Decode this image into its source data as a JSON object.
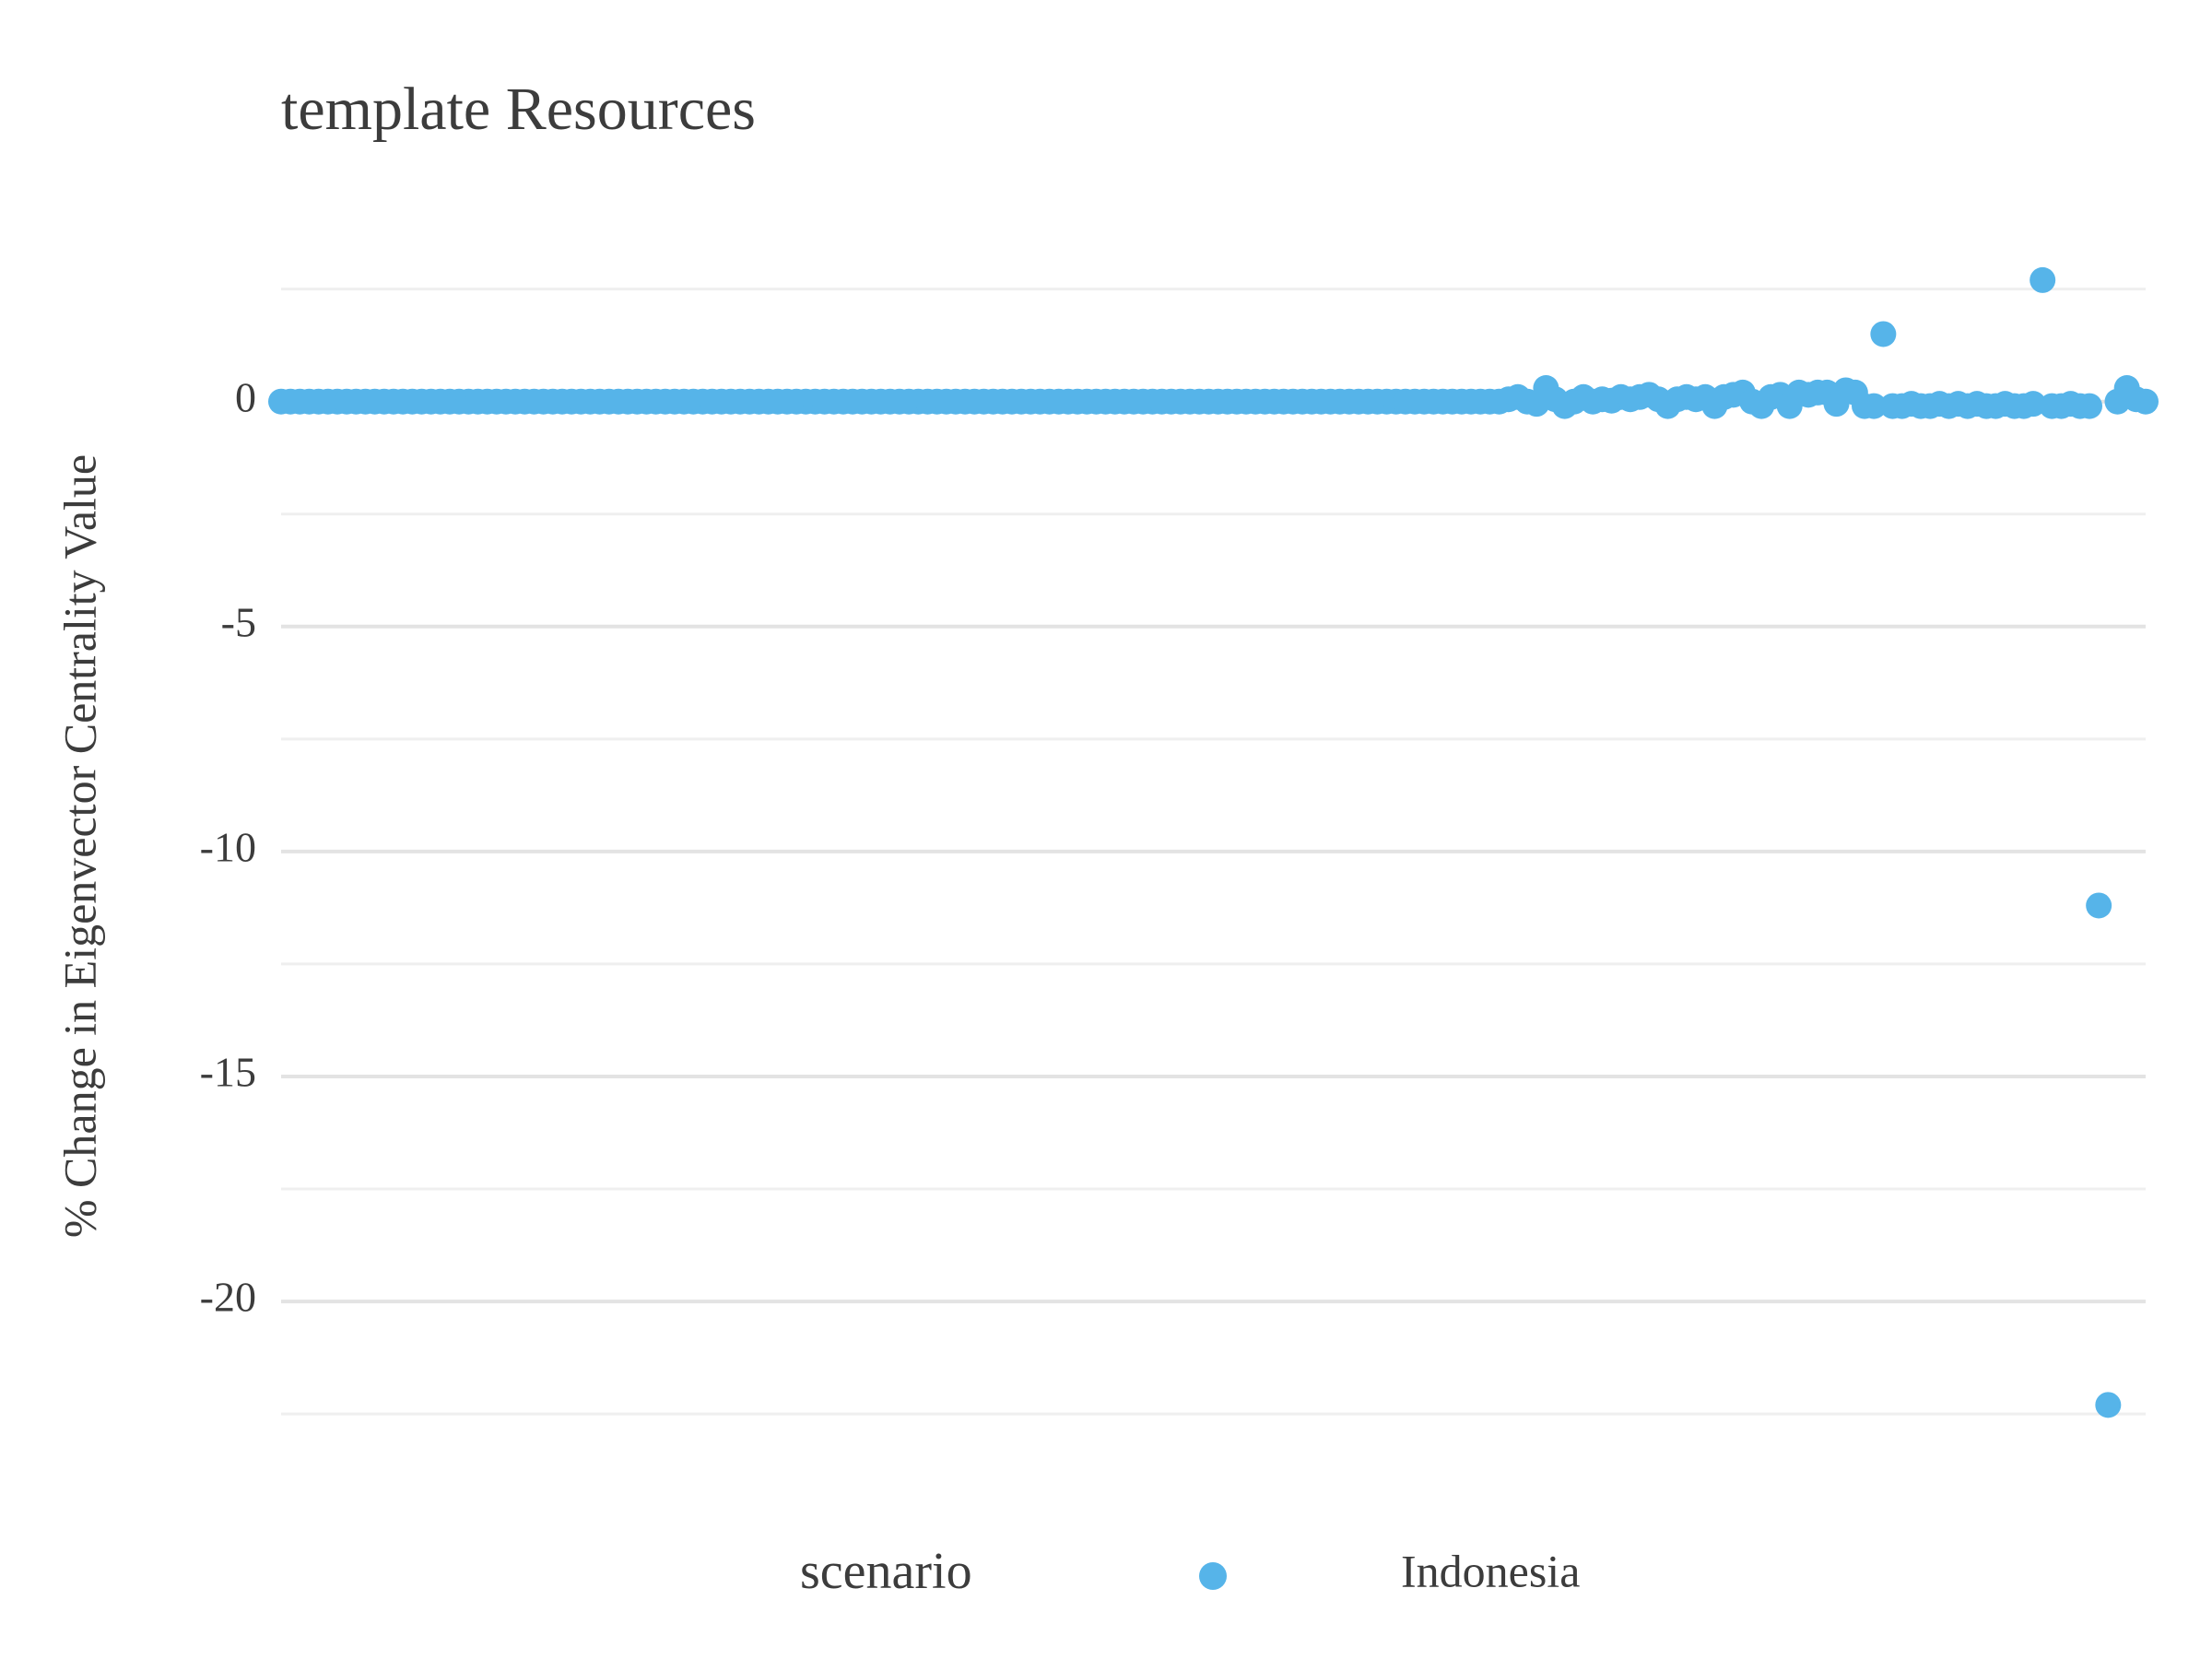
{
  "chart_data": {
    "type": "scatter",
    "title": "template Resources",
    "y_label": "% Change in Eigenvector Centrality Value",
    "legend_title": "scenario",
    "series": [
      {
        "name": "Indonesia",
        "color": "#56B4E9",
        "values": [
          0,
          0,
          0,
          0,
          0,
          0,
          0,
          0,
          0,
          0,
          0,
          0,
          0,
          0,
          0,
          0,
          0,
          0,
          0,
          0,
          0,
          0,
          0,
          0,
          0,
          0,
          0,
          0,
          0,
          0,
          0,
          0,
          0,
          0,
          0,
          0,
          0,
          0,
          0,
          0,
          0,
          0,
          0,
          0,
          0,
          0,
          0,
          0,
          0,
          0,
          0,
          0,
          0,
          0,
          0,
          0,
          0,
          0,
          0,
          0,
          0,
          0,
          0,
          0,
          0,
          0,
          0,
          0,
          0,
          0,
          0,
          0,
          0,
          0,
          0,
          0,
          0,
          0,
          0,
          0,
          0,
          0,
          0,
          0,
          0,
          0,
          0,
          0,
          0,
          0,
          0,
          0,
          0,
          0,
          0,
          0,
          0,
          0,
          0,
          0,
          0,
          0,
          0,
          0,
          0,
          0,
          0,
          0,
          0,
          0,
          0,
          0,
          0,
          0,
          0,
          0,
          0,
          0,
          0,
          0,
          0,
          0,
          0,
          0,
          0,
          0,
          0,
          0,
          0,
          0,
          0,
          0.05,
          0.1,
          0,
          -0.05,
          0.3,
          0.05,
          -0.1,
          0,
          0.1,
          0,
          0.05,
          0.02,
          0.1,
          0.05,
          0.1,
          0.15,
          0.05,
          -0.1,
          0.05,
          0.1,
          0.05,
          0.1,
          -0.1,
          0.1,
          0.15,
          0.2,
          0,
          -0.1,
          0.1,
          0.15,
          -0.1,
          0.2,
          0.15,
          0.2,
          0.2,
          -0.05,
          0.25,
          0.2,
          -0.1,
          -0.1,
          1.5,
          -0.1,
          -0.1,
          -0.05,
          -0.1,
          -0.1,
          -0.05,
          -0.1,
          -0.05,
          -0.1,
          -0.05,
          -0.1,
          -0.1,
          -0.05,
          -0.1,
          -0.1,
          -0.05,
          2.7,
          -0.1,
          -0.1,
          -0.05,
          -0.1,
          -0.1,
          -11.2,
          -22.3,
          0,
          0.3,
          0.05,
          0
        ]
      }
    ],
    "ylim": [
      -22.6,
      2.8
    ],
    "yticks": [
      0,
      -5,
      -10,
      -15,
      -20
    ],
    "minor_yticks": [
      2.5,
      -2.5,
      -7.5,
      -12.5,
      -17.5,
      -22.5
    ],
    "grid": true,
    "legend": "bottom"
  }
}
